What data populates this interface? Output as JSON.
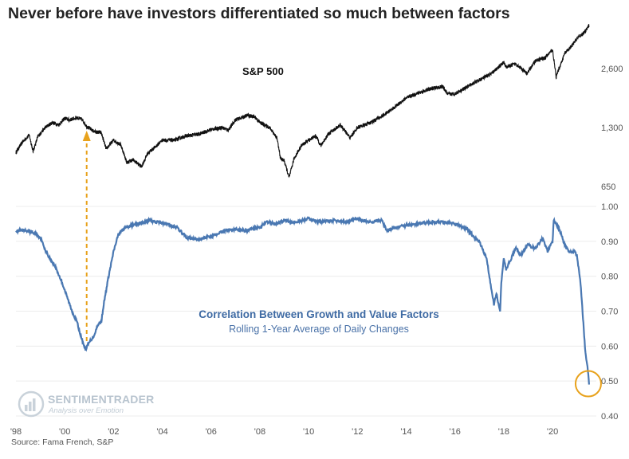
{
  "title": "Never before have investors differentiated so much between factors",
  "source": "Source: Fama French, S&P",
  "logo": {
    "brand": "SENTIMENTRADER",
    "tagline": "Analysis over Emotion"
  },
  "colors": {
    "sp500": "#111111",
    "correlation": "#4a78b2",
    "arrow": "#e8a21c",
    "circle": "#e8a21c",
    "grid": "#ececec"
  },
  "chart_data": [
    {
      "type": "line",
      "title": "S&P 500",
      "yscale": "log",
      "ylim": [
        600,
        3900
      ],
      "yticks": [
        650,
        1300,
        2600
      ],
      "ytick_labels": [
        "650",
        "1,300",
        "2,600"
      ],
      "xlim": [
        1998.0,
        2021.6
      ],
      "series": [
        {
          "name": "S&P 500",
          "x": [
            1998.0,
            1998.3,
            1998.55,
            1998.7,
            1998.9,
            1999.2,
            1999.5,
            1999.75,
            2000.0,
            2000.2,
            2000.5,
            2000.7,
            2000.9,
            2001.2,
            2001.5,
            2001.7,
            2002.0,
            2002.3,
            2002.55,
            2002.8,
            2003.15,
            2003.4,
            2003.7,
            2004.0,
            2004.5,
            2005.0,
            2005.5,
            2006.0,
            2006.45,
            2006.7,
            2007.0,
            2007.5,
            2007.8,
            2008.0,
            2008.4,
            2008.7,
            2008.85,
            2009.0,
            2009.2,
            2009.4,
            2009.7,
            2010.0,
            2010.3,
            2010.5,
            2010.8,
            2011.3,
            2011.7,
            2012.0,
            2012.5,
            2013.0,
            2013.5,
            2014.0,
            2014.5,
            2015.0,
            2015.5,
            2015.7,
            2016.0,
            2016.5,
            2017.0,
            2017.5,
            2018.0,
            2018.1,
            2018.5,
            2018.95,
            2019.3,
            2019.7,
            2020.0,
            2020.15,
            2020.22,
            2020.5,
            2020.8,
            2021.0,
            2021.3,
            2021.5
          ],
          "values": [
            970,
            1110,
            1190,
            980,
            1170,
            1300,
            1380,
            1340,
            1450,
            1420,
            1460,
            1430,
            1320,
            1240,
            1220,
            1010,
            1120,
            1060,
            860,
            890,
            820,
            960,
            1030,
            1120,
            1120,
            1180,
            1200,
            1270,
            1300,
            1260,
            1420,
            1500,
            1470,
            1380,
            1300,
            1150,
            900,
            880,
            720,
            900,
            1050,
            1120,
            1180,
            1050,
            1200,
            1340,
            1150,
            1300,
            1370,
            1480,
            1640,
            1840,
            1950,
            2050,
            2100,
            1920,
            1930,
            2100,
            2270,
            2450,
            2800,
            2650,
            2750,
            2450,
            2850,
            2950,
            3250,
            2350,
            2500,
            3100,
            3400,
            3700,
            3970,
            4300
          ]
        }
      ]
    },
    {
      "type": "line",
      "title": "Correlation Between Growth and Value Factors",
      "subtitle": "Rolling 1-Year Average of Daily Changes",
      "ylim": [
        0.4,
        1.0
      ],
      "yticks": [
        0.4,
        0.5,
        0.6,
        0.7,
        0.8,
        0.9,
        1.0
      ],
      "ytick_labels": [
        "0.40",
        "0.50",
        "0.60",
        "0.70",
        "0.80",
        "0.90",
        "1.00"
      ],
      "xlim": [
        1998.0,
        2021.6
      ],
      "xtick_labels": [
        "'98",
        "'00",
        "'02",
        "'04",
        "'06",
        "'08",
        "'10",
        "'12",
        "'14",
        "'16",
        "'18",
        "'20"
      ],
      "series": [
        {
          "name": "Correlation",
          "x": [
            1998.0,
            1998.5,
            1998.85,
            1999.0,
            1999.3,
            1999.6,
            1999.9,
            2000.1,
            2000.3,
            2000.5,
            2000.7,
            2000.85,
            2001.0,
            2001.2,
            2001.35,
            2001.5,
            2001.6,
            2001.8,
            2002.0,
            2002.2,
            2002.5,
            2003.0,
            2003.5,
            2003.8,
            2004.2,
            2004.6,
            2005.0,
            2005.5,
            2006.0,
            2006.5,
            2007.0,
            2007.5,
            2007.8,
            2008.0,
            2008.3,
            2008.7,
            2009.0,
            2009.5,
            2010.0,
            2010.5,
            2011.0,
            2011.5,
            2012.0,
            2012.5,
            2013.0,
            2013.2,
            2013.6,
            2014.0,
            2014.5,
            2015.0,
            2015.5,
            2016.0,
            2016.5,
            2016.8,
            2017.0,
            2017.3,
            2017.5,
            2017.6,
            2017.7,
            2017.85,
            2017.9,
            2018.0,
            2018.1,
            2018.5,
            2018.7,
            2019.0,
            2019.3,
            2019.6,
            2019.8,
            2020.0,
            2020.05,
            2020.15,
            2020.3,
            2020.5,
            2020.7,
            2020.9,
            2021.0,
            2021.15,
            2021.25,
            2021.35,
            2021.45,
            2021.5
          ],
          "values": [
            0.93,
            0.93,
            0.92,
            0.91,
            0.86,
            0.83,
            0.78,
            0.74,
            0.7,
            0.67,
            0.62,
            0.59,
            0.61,
            0.63,
            0.66,
            0.67,
            0.72,
            0.8,
            0.87,
            0.92,
            0.94,
            0.95,
            0.96,
            0.955,
            0.95,
            0.94,
            0.91,
            0.905,
            0.915,
            0.93,
            0.935,
            0.93,
            0.94,
            0.94,
            0.955,
            0.95,
            0.96,
            0.955,
            0.965,
            0.955,
            0.96,
            0.955,
            0.965,
            0.955,
            0.96,
            0.93,
            0.94,
            0.945,
            0.95,
            0.955,
            0.955,
            0.95,
            0.935,
            0.91,
            0.9,
            0.85,
            0.76,
            0.72,
            0.75,
            0.7,
            0.78,
            0.85,
            0.82,
            0.88,
            0.86,
            0.89,
            0.88,
            0.91,
            0.87,
            0.9,
            0.96,
            0.95,
            0.93,
            0.89,
            0.87,
            0.87,
            0.86,
            0.78,
            0.68,
            0.58,
            0.53,
            0.49
          ]
        }
      ]
    }
  ],
  "annotations": {
    "sp_label": "S&P 500",
    "corr_label": "Correlation Between Growth and Value Factors",
    "corr_sublabel": "Rolling 1-Year Average of Daily Changes"
  }
}
